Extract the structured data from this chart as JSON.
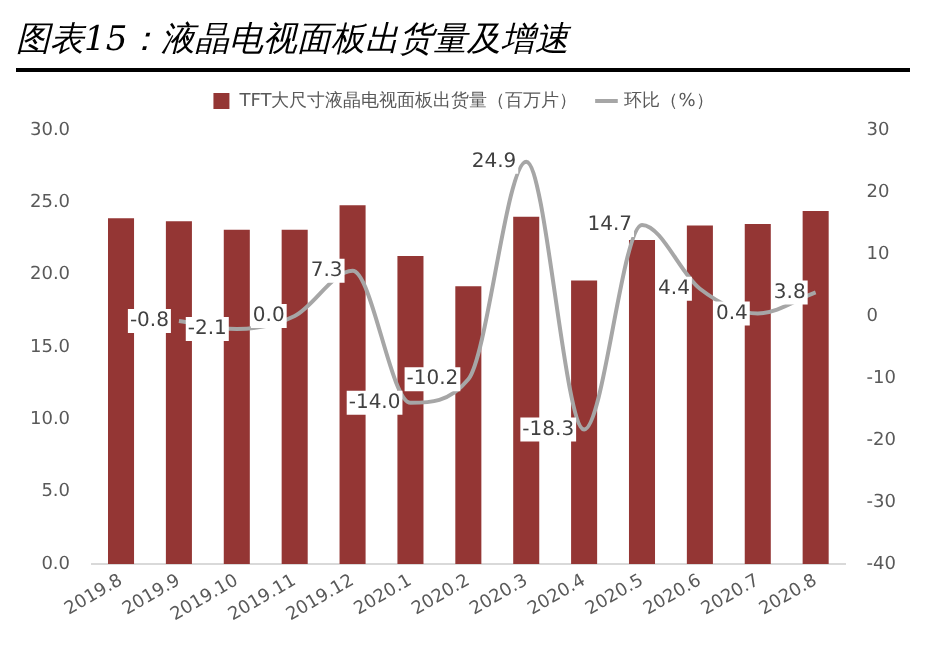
{
  "chart_data": {
    "type": "bar",
    "title": "图表15：液晶电视面板出货量及增速",
    "categories": [
      "2019.8",
      "2019.9",
      "2019.10",
      "2019.11",
      "2019.12",
      "2020.1",
      "2020.2",
      "2020.3",
      "2020.4",
      "2020.5",
      "2020.6",
      "2020.7",
      "2020.8"
    ],
    "series": [
      {
        "name": "TFT大尺寸液晶电视面板出货量（百万片）",
        "color": "#943634",
        "values": [
          23.9,
          23.7,
          23.1,
          23.1,
          24.8,
          21.3,
          19.2,
          24.0,
          19.6,
          22.4,
          23.4,
          23.5,
          24.4
        ]
      },
      {
        "name": "环比（%）",
        "type": "line",
        "axis": "y2",
        "color": "#a6a6a6",
        "values": [
          null,
          -0.8,
          -2.1,
          0.0,
          7.3,
          -14.0,
          -10.2,
          24.9,
          -18.3,
          14.7,
          4.4,
          0.4,
          3.8
        ],
        "value_labels": [
          null,
          "-0.8",
          "-2.1",
          "0.0",
          "7.3",
          "-14.0",
          "-10.2",
          "24.9",
          "-18.3",
          "14.7",
          "4.4",
          "0.4",
          "3.8"
        ]
      }
    ],
    "ylim": [
      0,
      30
    ],
    "yticks": [
      {
        "value": 0,
        "label": "0.0"
      },
      {
        "value": 5,
        "label": "5.0"
      },
      {
        "value": 10,
        "label": "10.0"
      },
      {
        "value": 15,
        "label": "15.0"
      },
      {
        "value": 20,
        "label": "20.0"
      },
      {
        "value": 25,
        "label": "25.0"
      },
      {
        "value": 30,
        "label": "30.0"
      }
    ],
    "y2lim": [
      -40,
      30
    ],
    "y2ticks": [
      -40,
      -30,
      -20,
      -10,
      0,
      10,
      20,
      30
    ],
    "legend": "top",
    "grid": false,
    "marker": "none"
  }
}
